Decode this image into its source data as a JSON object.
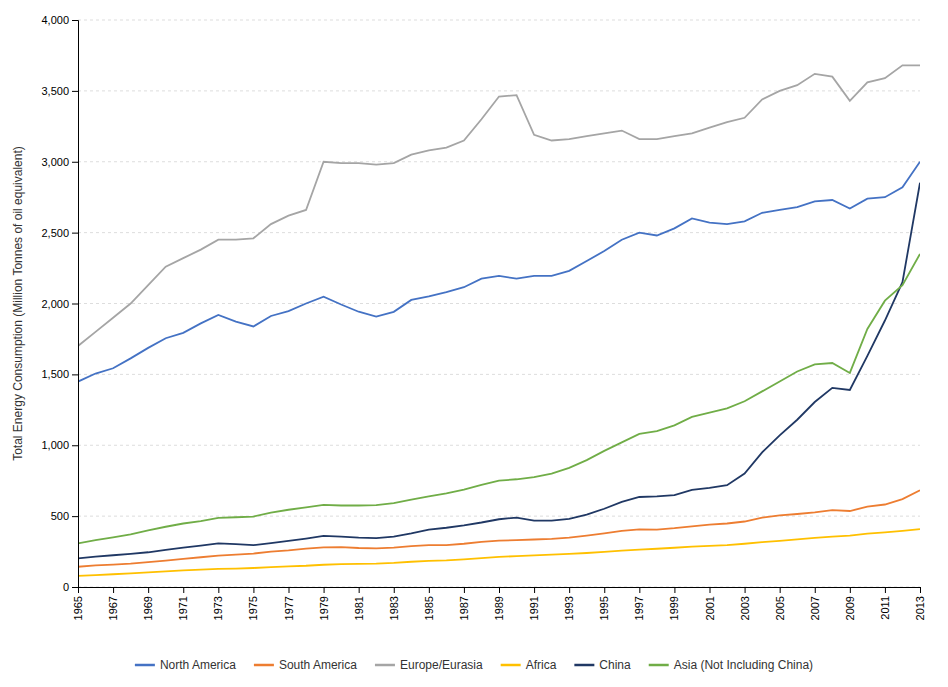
{
  "chart_data": {
    "type": "line",
    "x": [
      1965,
      1966,
      1967,
      1968,
      1969,
      1970,
      1971,
      1972,
      1973,
      1974,
      1975,
      1976,
      1977,
      1978,
      1979,
      1980,
      1981,
      1982,
      1983,
      1984,
      1985,
      1986,
      1987,
      1988,
      1989,
      1990,
      1991,
      1992,
      1993,
      1994,
      1995,
      1996,
      1997,
      1998,
      1999,
      2000,
      2001,
      2002,
      2003,
      2004,
      2005,
      2006,
      2007,
      2008,
      2009,
      2010,
      2011,
      2012,
      2013
    ],
    "series": [
      {
        "name": "North America",
        "color": "#4472C4",
        "values": [
          1449,
          1506,
          1543,
          1613,
          1687,
          1755,
          1793,
          1860,
          1919,
          1872,
          1838,
          1912,
          1946,
          2000,
          2048,
          1993,
          1942,
          1907,
          1941,
          2025,
          2050,
          2080,
          2115,
          2175,
          2195,
          2175,
          2195,
          2195,
          2230,
          2300,
          2370,
          2450,
          2500,
          2480,
          2530,
          2600,
          2570,
          2560,
          2580,
          2640,
          2660,
          2680,
          2720,
          2730,
          2670,
          2740,
          2750,
          2820,
          3000
        ]
      },
      {
        "name": "South America",
        "color": "#ED7D31",
        "values": [
          143,
          152,
          158,
          165,
          175,
          186,
          198,
          210,
          222,
          228,
          236,
          250,
          258,
          270,
          280,
          282,
          275,
          273,
          278,
          288,
          296,
          295,
          305,
          318,
          327,
          330,
          335,
          340,
          348,
          362,
          378,
          396,
          406,
          405,
          415,
          428,
          440,
          448,
          462,
          490,
          505,
          515,
          527,
          543,
          536,
          567,
          582,
          620,
          682
        ]
      },
      {
        "name": "Europe/Eurasia",
        "color": "#A5A5A5",
        "values": [
          1700,
          1800,
          1900,
          2000,
          2130,
          2260,
          2320,
          2380,
          2450,
          2450,
          2460,
          2560,
          2620,
          2660,
          3000,
          2990,
          2990,
          2980,
          2990,
          3050,
          3080,
          3100,
          3150,
          3300,
          3460,
          3470,
          3190,
          3150,
          3160,
          3180,
          3200,
          3220,
          3160,
          3160,
          3180,
          3200,
          3240,
          3280,
          3310,
          3440,
          3500,
          3540,
          3620,
          3600,
          3430,
          3560,
          3590,
          3680,
          3680
        ]
      },
      {
        "name": "Africa",
        "color": "#FFC000",
        "values": [
          78,
          84,
          90,
          96,
          103,
          110,
          117,
          123,
          128,
          130,
          134,
          140,
          146,
          150,
          157,
          162,
          163,
          165,
          170,
          178,
          185,
          188,
          195,
          203,
          212,
          218,
          223,
          228,
          233,
          240,
          248,
          257,
          263,
          270,
          277,
          285,
          290,
          295,
          305,
          316,
          326,
          336,
          346,
          356,
          362,
          376,
          385,
          396,
          409
        ]
      },
      {
        "name": "China",
        "color": "#203864",
        "values": [
          202,
          215,
          224,
          234,
          245,
          262,
          278,
          292,
          308,
          302,
          295,
          310,
          325,
          342,
          360,
          355,
          348,
          345,
          355,
          378,
          405,
          418,
          435,
          455,
          478,
          490,
          468,
          468,
          480,
          510,
          552,
          600,
          635,
          640,
          648,
          685,
          700,
          718,
          800,
          950,
          1070,
          1180,
          1305,
          1405,
          1390,
          1630,
          1880,
          2150,
          2852
        ]
      },
      {
        "name": "Asia (Not Including China)",
        "color": "#70AD47",
        "values": [
          308,
          330,
          350,
          372,
          400,
          425,
          448,
          465,
          487,
          492,
          497,
          525,
          545,
          562,
          580,
          575,
          575,
          578,
          592,
          617,
          640,
          660,
          687,
          720,
          750,
          760,
          775,
          800,
          840,
          895,
          960,
          1020,
          1080,
          1100,
          1140,
          1200,
          1230,
          1260,
          1310,
          1380,
          1450,
          1520,
          1570,
          1580,
          1510,
          1820,
          2020,
          2130,
          2350
        ]
      }
    ],
    "xlim": [
      1965,
      2013
    ],
    "xticks": [
      1965,
      1967,
      1969,
      1971,
      1973,
      1975,
      1977,
      1979,
      1981,
      1983,
      1985,
      1987,
      1989,
      1991,
      1993,
      1995,
      1997,
      1999,
      2001,
      2003,
      2005,
      2007,
      2009,
      2011,
      2013
    ],
    "ylim": [
      0,
      4000
    ],
    "yticks": [
      0,
      500,
      {
        "value": 1000,
        "label": "1,000"
      },
      {
        "value": 1500,
        "label": "1,500"
      },
      {
        "value": 2000,
        "label": "2,000"
      },
      {
        "value": 2500,
        "label": "2,500"
      },
      {
        "value": 3000,
        "label": "3,000"
      },
      {
        "value": 3500,
        "label": "3,500"
      },
      {
        "value": 4000,
        "label": "4,000"
      }
    ],
    "ylabel": "Total Energy Consumption (Million Tonnes of oil equivalent)",
    "grid": true,
    "legend": "bottom"
  }
}
